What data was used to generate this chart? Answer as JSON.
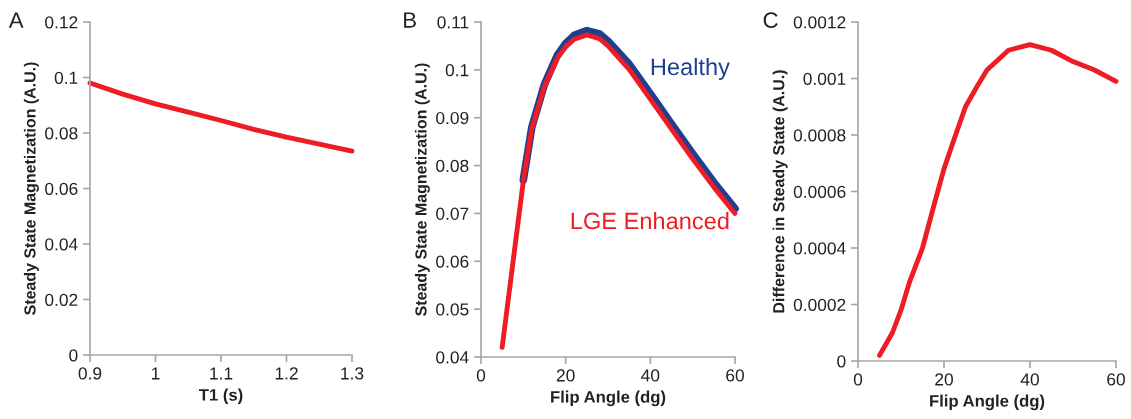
{
  "chart_data": [
    {
      "type": "line",
      "title": "A",
      "xlabel": "T1 (s)",
      "ylabel": "Steady State Magnetization (A.U.)",
      "xlim": [
        0.9,
        1.3
      ],
      "xticks": [
        0.9,
        1,
        1.1,
        1.2,
        1.3
      ],
      "ylim": [
        0,
        0.12
      ],
      "yticks": [
        0,
        0.02,
        0.04,
        0.06,
        0.08,
        0.1,
        0.12
      ],
      "grid": false,
      "legend": false,
      "series": [
        {
          "color": "#ee1c24",
          "x": [
            0.9,
            0.95,
            1.0,
            1.05,
            1.1,
            1.15,
            1.2,
            1.25,
            1.3
          ],
          "values": [
            0.098,
            0.094,
            0.0905,
            0.0875,
            0.0845,
            0.0813,
            0.0785,
            0.076,
            0.0735
          ]
        }
      ]
    },
    {
      "type": "line",
      "title": "B",
      "xlabel": "Flip Angle (dg)",
      "ylabel": "Steady State Magnetization (A.U.)",
      "xlim": [
        0,
        60
      ],
      "xticks": [
        0,
        20,
        40,
        60
      ],
      "ylim": [
        0.04,
        0.11
      ],
      "yticks": [
        0.04,
        0.05,
        0.06,
        0.07,
        0.08,
        0.09,
        0.1,
        0.11
      ],
      "grid": false,
      "legend": false,
      "series": [
        {
          "name": "Healthy",
          "color": "#1f3f8f",
          "x": [
            10,
            12,
            15,
            18,
            20,
            22,
            25,
            28,
            30,
            35,
            40,
            45,
            50,
            55,
            60
          ],
          "values": [
            0.077,
            0.088,
            0.097,
            0.103,
            0.1055,
            0.1072,
            0.1082,
            0.1075,
            0.106,
            0.1012,
            0.095,
            0.0887,
            0.0825,
            0.0765,
            0.071
          ]
        },
        {
          "name": "LGE Enhanced",
          "color": "#ee1c24",
          "x": [
            5,
            8,
            10,
            12,
            15,
            18,
            20,
            22,
            25,
            28,
            30,
            35,
            40,
            45,
            50,
            55,
            60
          ],
          "values": [
            0.042,
            0.0629,
            0.0768,
            0.0877,
            0.0966,
            0.1024,
            0.1048,
            0.1064,
            0.1073,
            0.1065,
            0.105,
            0.1001,
            0.0939,
            0.0876,
            0.0814,
            0.0755,
            0.07
          ]
        }
      ]
    },
    {
      "type": "line",
      "title": "C",
      "xlabel": "Flip Angle (dg)",
      "ylabel": "Difference in Steady State (A.U.)",
      "xlim": [
        0,
        60
      ],
      "xticks": [
        0,
        20,
        40,
        60
      ],
      "ylim": [
        0,
        0.0012
      ],
      "yticks": [
        0,
        0.0002,
        0.0004,
        0.0006,
        0.0008,
        0.001,
        0.0012
      ],
      "grid": false,
      "legend": false,
      "series": [
        {
          "color": "#ee1c24",
          "x": [
            5,
            8,
            10,
            12,
            15,
            18,
            20,
            22,
            25,
            28,
            30,
            35,
            40,
            45,
            50,
            55,
            60
          ],
          "values": [
            2e-05,
            0.0001,
            0.00018,
            0.00028,
            0.0004,
            0.00057,
            0.00068,
            0.00077,
            0.0009,
            0.00098,
            0.00103,
            0.0011,
            0.00112,
            0.0011,
            0.00106,
            0.00103,
            0.00099
          ]
        }
      ]
    }
  ]
}
